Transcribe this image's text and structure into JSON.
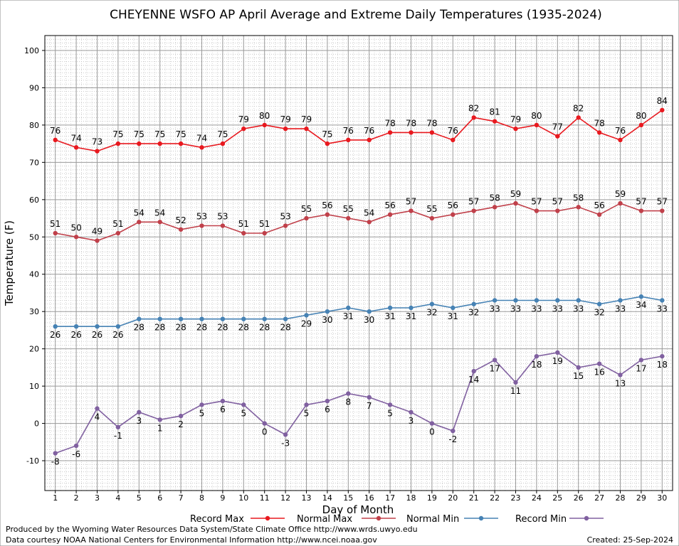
{
  "chart_data": {
    "type": "line",
    "title": "CHEYENNE WSFO AP April Average and Extreme Daily Temperatures (1935-2024)",
    "xlabel": "Day of Month",
    "ylabel": "Temperature (F)",
    "x": [
      1,
      2,
      3,
      4,
      5,
      6,
      7,
      8,
      9,
      10,
      11,
      12,
      13,
      14,
      15,
      16,
      17,
      18,
      19,
      20,
      21,
      22,
      23,
      24,
      25,
      26,
      27,
      28,
      29,
      30
    ],
    "ylim": [
      -18,
      104
    ],
    "yticks": [
      -10,
      0,
      10,
      20,
      30,
      40,
      50,
      60,
      70,
      80,
      90,
      100
    ],
    "grid": true,
    "legend_placement": "bottom",
    "series": [
      {
        "name": "Record Max",
        "color": "#e8191f",
        "label_position": "above",
        "values": [
          76,
          74,
          73,
          75,
          75,
          75,
          75,
          74,
          75,
          79,
          80,
          79,
          79,
          75,
          76,
          76,
          78,
          78,
          78,
          76,
          82,
          81,
          79,
          80,
          77,
          82,
          78,
          76,
          80,
          84
        ]
      },
      {
        "name": "Normal Max",
        "color": "#c0404a",
        "label_position": "above",
        "values": [
          51,
          50,
          49,
          51,
          54,
          54,
          52,
          53,
          53,
          51,
          51,
          53,
          55,
          56,
          55,
          54,
          56,
          57,
          55,
          56,
          57,
          58,
          59,
          57,
          57,
          58,
          56,
          59,
          57,
          57
        ]
      },
      {
        "name": "Normal Min",
        "color": "#4682b4",
        "label_position": "below",
        "values": [
          26,
          26,
          26,
          26,
          28,
          28,
          28,
          28,
          28,
          28,
          28,
          28,
          29,
          30,
          31,
          30,
          31,
          31,
          32,
          31,
          32,
          33,
          33,
          33,
          33,
          33,
          32,
          33,
          34,
          33
        ]
      },
      {
        "name": "Record Min",
        "color": "#8060a0",
        "label_position": "below",
        "values": [
          -8,
          -6,
          4,
          -1,
          3,
          1,
          2,
          5,
          6,
          5,
          0,
          -3,
          5,
          6,
          8,
          7,
          5,
          3,
          0,
          -2,
          14,
          17,
          11,
          18,
          19,
          15,
          16,
          13,
          17,
          18
        ]
      }
    ]
  },
  "footer": {
    "line1": "Produced by the Wyoming Water Resources Data System/State Climate Office http://www.wrds.uwyo.edu",
    "line2": "Data courtesy NOAA National Centers for Environmental Information http://www.ncei.noaa.gov",
    "created": "Created:  25-Sep-2024"
  }
}
